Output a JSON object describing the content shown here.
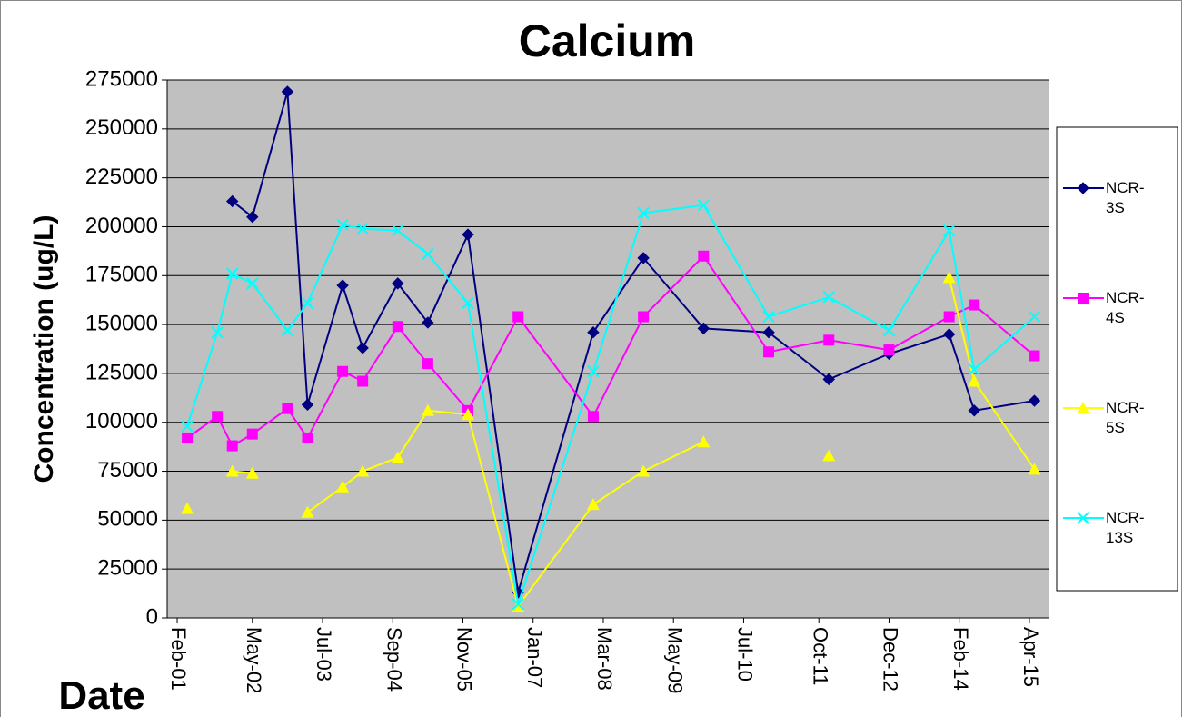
{
  "chart_data": {
    "type": "line",
    "title": "Calcium",
    "x_label": "Date",
    "y_label": "Concentration (ug/L)",
    "x": [
      "2001-04",
      "2001-10",
      "2002-01",
      "2002-05",
      "2002-12",
      "2003-04",
      "2003-11",
      "2004-03",
      "2004-10",
      "2005-04",
      "2005-12",
      "2006-10",
      "2008-01",
      "2008-11",
      "2009-11",
      "2010-12",
      "2011-12",
      "2012-12",
      "2013-12",
      "2014-05",
      "2015-05"
    ],
    "series": [
      {
        "name": "NCR-3S",
        "color": "#000080",
        "marker": "diamond",
        "values": [
          null,
          null,
          213000,
          205000,
          269000,
          109000,
          170000,
          138000,
          171000,
          151000,
          196000,
          13000,
          146000,
          184000,
          148000,
          146000,
          122000,
          135000,
          145000,
          106000,
          111000
        ]
      },
      {
        "name": "NCR-4S",
        "color": "#ff00ff",
        "marker": "square",
        "values": [
          92000,
          103000,
          88000,
          94000,
          107000,
          92000,
          126000,
          121000,
          149000,
          130000,
          106000,
          154000,
          103000,
          154000,
          185000,
          136000,
          142000,
          137000,
          154000,
          160000,
          134000
        ]
      },
      {
        "name": "NCR-5S",
        "color": "#ffff00",
        "marker": "triangle",
        "values": [
          56000,
          null,
          75000,
          74000,
          null,
          54000,
          67000,
          75000,
          82000,
          106000,
          104000,
          6000,
          58000,
          75000,
          90000,
          null,
          83000,
          null,
          174000,
          121000,
          76000
        ]
      },
      {
        "name": "NCR-13S",
        "color": "#00ffff",
        "marker": "x",
        "values": [
          98000,
          146000,
          176000,
          171000,
          147000,
          161000,
          201000,
          199000,
          198000,
          186000,
          161000,
          7000,
          126000,
          207000,
          211000,
          154000,
          164000,
          147000,
          198000,
          127000,
          154000
        ]
      }
    ],
    "xlim": [
      "2000-12",
      "2015-08"
    ],
    "xticks": [
      {
        "value": "2001-02",
        "label": "Feb-01"
      },
      {
        "value": "2002-05",
        "label": "May-02"
      },
      {
        "value": "2003-07",
        "label": "Jul-03"
      },
      {
        "value": "2004-09",
        "label": "Sep-04"
      },
      {
        "value": "2005-11",
        "label": "Nov-05"
      },
      {
        "value": "2007-01",
        "label": "Jan-07"
      },
      {
        "value": "2008-03",
        "label": "Mar-08"
      },
      {
        "value": "2009-05",
        "label": "May-09"
      },
      {
        "value": "2010-07",
        "label": "Jul-10"
      },
      {
        "value": "2011-10",
        "label": "Oct-11"
      },
      {
        "value": "2012-12",
        "label": "Dec-12"
      },
      {
        "value": "2014-02",
        "label": "Feb-14"
      },
      {
        "value": "2015-04",
        "label": "Apr-15"
      }
    ],
    "ylim": [
      0,
      275000
    ],
    "yticks": [
      0,
      25000,
      50000,
      75000,
      100000,
      125000,
      150000,
      175000,
      200000,
      225000,
      250000,
      275000
    ],
    "grid": true,
    "legend": "right",
    "background": "#c0c0c0"
  }
}
